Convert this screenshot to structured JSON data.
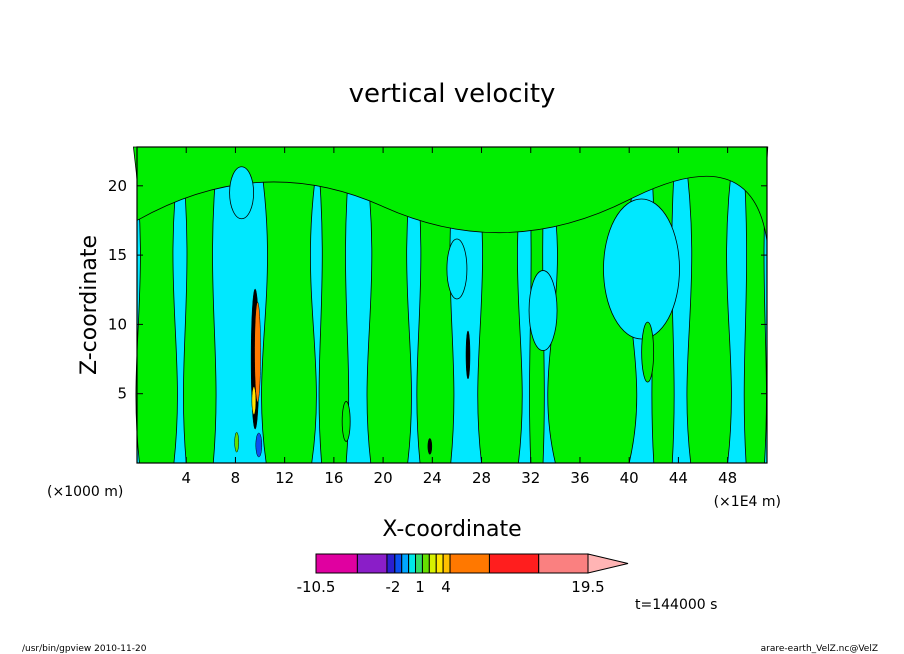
{
  "chart_data": {
    "type": "heatmap",
    "title": "vertical velocity",
    "xlabel": "X-coordinate",
    "ylabel": "Z-coordinate",
    "x_ticks": [
      "4",
      "8",
      "12",
      "16",
      "20",
      "24",
      "28",
      "32",
      "36",
      "40",
      "44",
      "48"
    ],
    "x_tick_values": [
      4,
      8,
      12,
      16,
      20,
      24,
      28,
      32,
      36,
      40,
      44,
      48
    ],
    "y_ticks": [
      "5",
      "10",
      "15",
      "20"
    ],
    "y_tick_values": [
      5,
      10,
      15,
      20
    ],
    "xlim": [
      0,
      51.2
    ],
    "ylim": [
      0,
      22.8
    ],
    "x_unit_left": "(×1000 m)",
    "x_unit_right": "(×1E4 m)",
    "colorbar": {
      "colors": [
        "#e000a0",
        "#8a1ec8",
        "#2b1fcf",
        "#0a50f0",
        "#00a6ff",
        "#00e8e8",
        "#33dd66",
        "#66e000",
        "#d6f000",
        "#ffe600",
        "#ffc000",
        "#ff7800",
        "#ff1e1e",
        "#fa8080",
        "#ffb4b4"
      ],
      "tick_labels": [
        "-10.5",
        "-2",
        "1",
        "4",
        "19.5"
      ],
      "extend": "max"
    },
    "time_label": "t=144000 s",
    "footer_left": "/usr/bin/gpview   2010-11-20",
    "footer_right": "arare-earth_VelZ.nc@VelZ",
    "field_colors": {
      "background": "#00e8ff",
      "positive": "#00ee00",
      "contour": "#000000"
    }
  }
}
